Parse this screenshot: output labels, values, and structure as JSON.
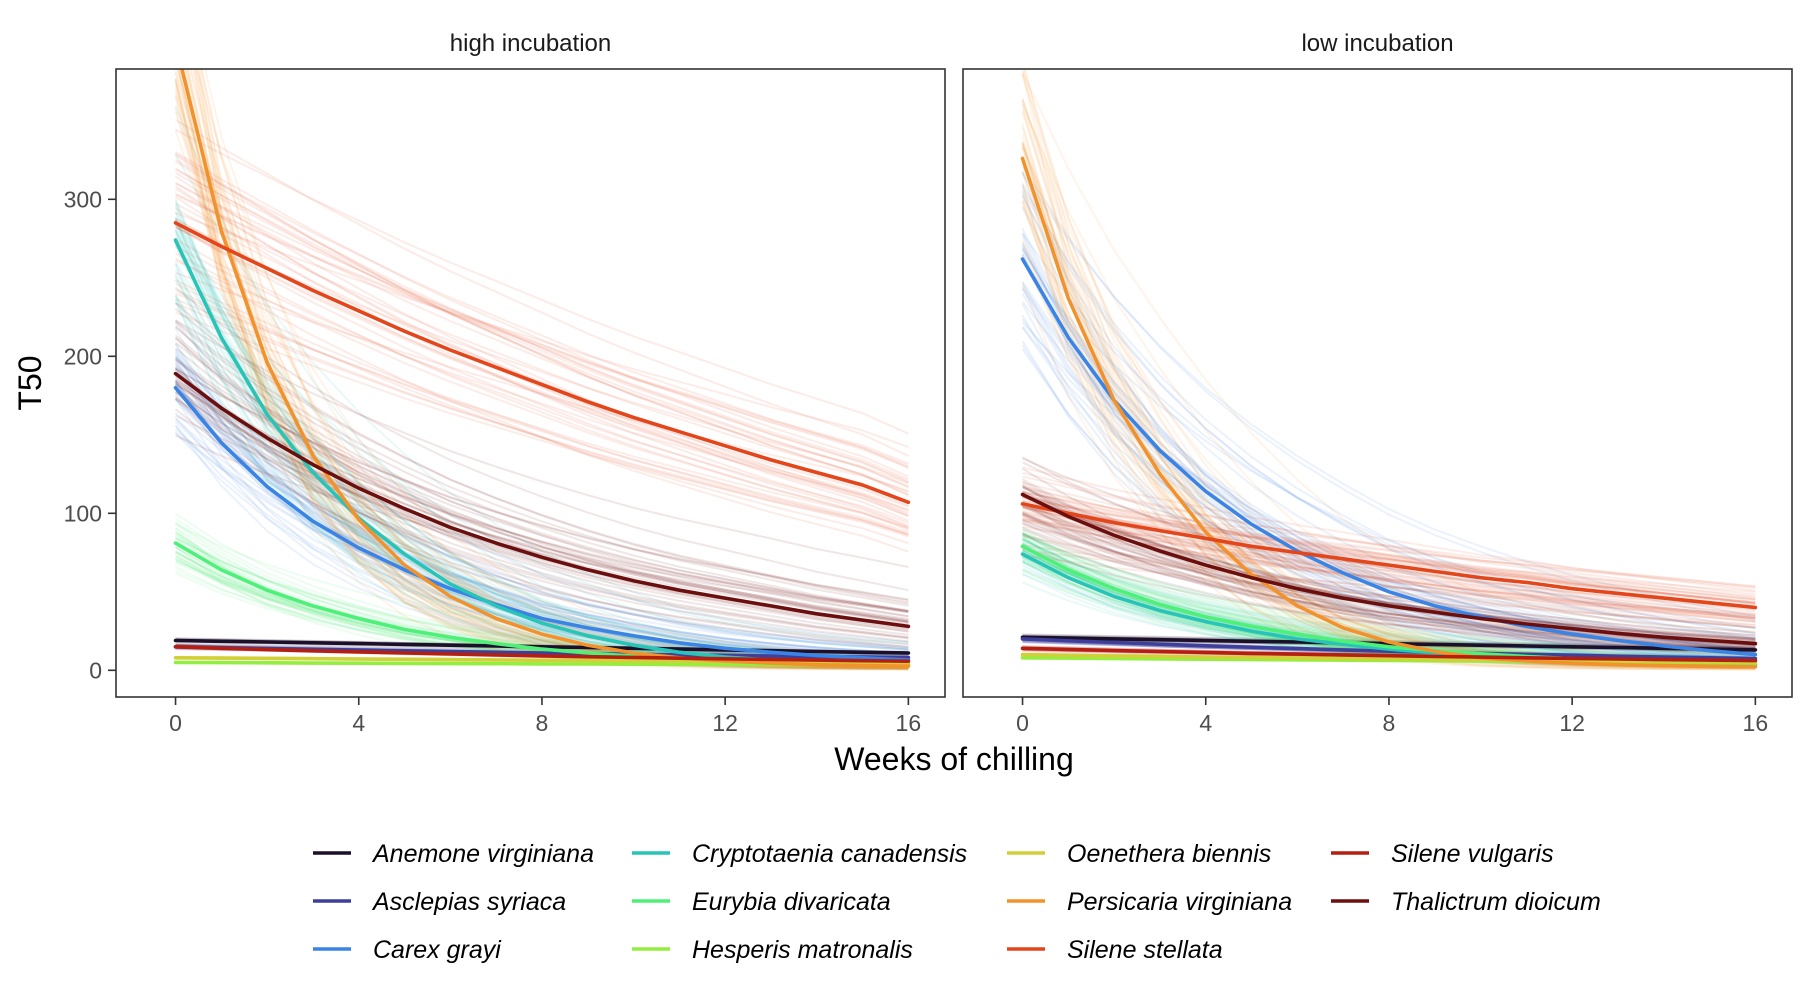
{
  "chart_data": {
    "type": "line",
    "xlabel": "Weeks of chilling",
    "ylabel": "T50",
    "xlim": [
      -1.3,
      16.8
    ],
    "ylim": [
      -17,
      383
    ],
    "x_ticks": [
      0,
      4,
      8,
      12,
      16
    ],
    "y_ticks": [
      0,
      100,
      200,
      300
    ],
    "grid": false,
    "legend_position": "bottom",
    "colors": {
      "Anemone virginiana": "#1c0f2a",
      "Asclepias syriaca": "#3d3f9a",
      "Carex grayi": "#3a84e6",
      "Cryptotaenia canadensis": "#27c4b7",
      "Eurybia divaricata": "#4ef07a",
      "Hesperis matronalis": "#93ee3f",
      "Oenethera biennis": "#d2d03a",
      "Persicaria virginiana": "#f2922c",
      "Silene stellata": "#e4461b",
      "Silene vulgaris": "#b51f12",
      "Thalictrum dioicum": "#6b0e0e"
    },
    "panels": [
      {
        "title": "high incubation",
        "x": [
          0,
          1,
          2,
          3,
          4,
          5,
          6,
          7,
          8,
          9,
          10,
          11,
          12,
          13,
          14,
          15,
          16
        ],
        "series": [
          {
            "name": "Anemone virginiana",
            "values": [
              19.0,
              18.5,
              18.0,
              17.5,
              17.0,
              16.5,
              16.0,
              15.5,
              15.0,
              14.5,
              14.0,
              13.5,
              13.0,
              12.5,
              12.0,
              11.5,
              11.0
            ]
          },
          {
            "name": "Asclepias syriaca",
            "values": [
              15.0,
              14.4,
              13.9,
              13.4,
              12.9,
              12.4,
              11.9,
              11.5,
              11.0,
              10.6,
              10.2,
              9.8,
              9.5,
              9.1,
              8.8,
              8.4,
              8.1
            ]
          },
          {
            "name": "Carex grayi",
            "values": [
              180,
              145,
              117,
              95,
              78,
              64,
              52,
              42,
              33,
              27,
              22,
              17.5,
              14.0,
              11.5,
              9.5,
              8.0,
              6.5
            ]
          },
          {
            "name": "Cryptotaenia canadensis",
            "values": [
              274,
              212,
              163,
              126,
              97,
              74,
              55,
              41,
              30,
              22,
              16.0,
              11.5,
              8.5,
              6.5,
              5.0,
              4.0,
              3.5
            ]
          },
          {
            "name": "Eurybia divaricata",
            "values": [
              81,
              64,
              51,
              41,
              33,
              26,
              21,
              17,
              13.5,
              11,
              9,
              7.5,
              6,
              5,
              4.3,
              3.8,
              3.4
            ]
          },
          {
            "name": "Hesperis matronalis",
            "values": [
              5.0,
              4.9,
              4.8,
              4.6,
              4.5,
              4.4,
              4.3,
              4.2,
              4.1,
              4.0,
              3.9,
              3.8,
              3.7,
              3.6,
              3.5,
              3.4,
              3.3
            ]
          },
          {
            "name": "Oenethera biennis",
            "values": [
              8.0,
              7.8,
              7.6,
              7.4,
              7.2,
              7.0,
              6.8,
              6.6,
              6.4,
              6.2,
              6.0,
              5.8,
              5.6,
              5.4,
              5.2,
              5.0,
              4.8
            ]
          },
          {
            "name": "Persicaria virginiana",
            "values": [
              400,
              280,
              196,
              137,
              96,
              67,
              47,
              33,
              23,
              16,
              11,
              8,
              6,
              4.5,
              3.6,
              3.0,
              2.6
            ]
          },
          {
            "name": "Silene stellata",
            "values": [
              285,
              270,
              256,
              242,
              229,
              216,
              204,
              193,
              182,
              171,
              161,
              152,
              143,
              134,
              126,
              118,
              107
            ]
          },
          {
            "name": "Silene vulgaris",
            "values": [
              15.0,
              14.0,
              13.2,
              12.4,
              11.7,
              11.0,
              10.4,
              9.8,
              9.2,
              8.7,
              8.2,
              7.7,
              7.3,
              6.9,
              6.5,
              6.1,
              5.8
            ]
          },
          {
            "name": "Thalictrum dioicum",
            "values": [
              189,
              167,
              148,
              131,
              116,
              103,
              91,
              81,
              72,
              64,
              57,
              51,
              46,
              41,
              36,
              32,
              28
            ]
          }
        ]
      },
      {
        "title": "low incubation",
        "x": [
          0,
          1,
          2,
          3,
          4,
          5,
          6,
          7,
          8,
          9,
          10,
          11,
          12,
          13,
          14,
          15,
          16
        ],
        "series": [
          {
            "name": "Anemone virginiana",
            "values": [
              21.0,
              20.5,
              20.0,
              19.5,
              19.0,
              18.5,
              18.0,
              17.5,
              17.0,
              16.5,
              16.0,
              15.5,
              15.0,
              14.5,
              14.0,
              13.5,
              13.0
            ]
          },
          {
            "name": "Asclepias syriaca",
            "values": [
              20.0,
              18.8,
              17.7,
              16.6,
              15.6,
              14.7,
              13.8,
              13.0,
              12.2,
              11.5,
              10.8,
              10.2,
              9.6,
              9.0,
              8.5,
              8.0,
              7.5
            ]
          },
          {
            "name": "Carex grayi",
            "values": [
              262,
              212,
              172,
              140,
              114,
              93,
              76,
              62,
              50,
              41,
              34,
              28,
              23,
              19,
              15.5,
              12.5,
              10
            ]
          },
          {
            "name": "Cryptotaenia canadensis",
            "values": [
              74,
              59,
              47,
              38,
              31,
              25,
              20,
              16.5,
              13.5,
              11,
              9,
              7.5,
              6.2,
              5.2,
              4.4,
              3.8,
              3.3
            ]
          },
          {
            "name": "Eurybia divaricata",
            "values": [
              79,
              64,
              52,
              42,
              34,
              28,
              23,
              18.5,
              15,
              12.5,
              10.5,
              8.8,
              7.4,
              6.2,
              5.2,
              4.4,
              3.8
            ]
          },
          {
            "name": "Hesperis matronalis",
            "values": [
              8.0,
              7.8,
              7.5,
              7.3,
              7.1,
              6.9,
              6.7,
              6.5,
              6.3,
              6.1,
              5.9,
              5.7,
              5.5,
              5.3,
              5.1,
              4.9,
              4.7
            ]
          },
          {
            "name": "Oenethera biennis",
            "values": [
              10.0,
              9.6,
              9.2,
              8.9,
              8.5,
              8.2,
              7.9,
              7.6,
              7.3,
              7.0,
              6.7,
              6.5,
              6.2,
              6.0,
              5.7,
              5.5,
              5.3
            ]
          },
          {
            "name": "Persicaria virginiana",
            "values": [
              326,
              237,
              172,
              125,
              88,
              61,
              41,
              27,
              18,
              12,
              8,
              6,
              4.5,
              3.6,
              3.0,
              2.6,
              2.3
            ]
          },
          {
            "name": "Silene stellata",
            "values": [
              106,
              100,
              94,
              89,
              84,
              79,
              75,
              71,
              67,
              63,
              59,
              56,
              52,
              49,
              46,
              43,
              40
            ]
          },
          {
            "name": "Silene vulgaris",
            "values": [
              14.0,
              13.3,
              12.6,
              12.0,
              11.4,
              10.8,
              10.3,
              9.8,
              9.3,
              8.8,
              8.4,
              8.0,
              7.6,
              7.2,
              6.8,
              6.5,
              6.2
            ]
          },
          {
            "name": "Thalictrum dioicum",
            "values": [
              112,
              98,
              86,
              76,
              67,
              59,
              52,
              46,
              41,
              37,
              33,
              29.5,
              26.5,
              23.5,
              21,
              19,
              17
            ]
          }
        ]
      }
    ],
    "legend_order": [
      "Anemone virginiana",
      "Asclepias syriaca",
      "Carex grayi",
      "Cryptotaenia canadensis",
      "Eurybia divaricata",
      "Hesperis matronalis",
      "Oenethera biennis",
      "Persicaria virginiana",
      "Silene stellata",
      "Silene vulgaris",
      "Thalictrum dioicum"
    ]
  }
}
